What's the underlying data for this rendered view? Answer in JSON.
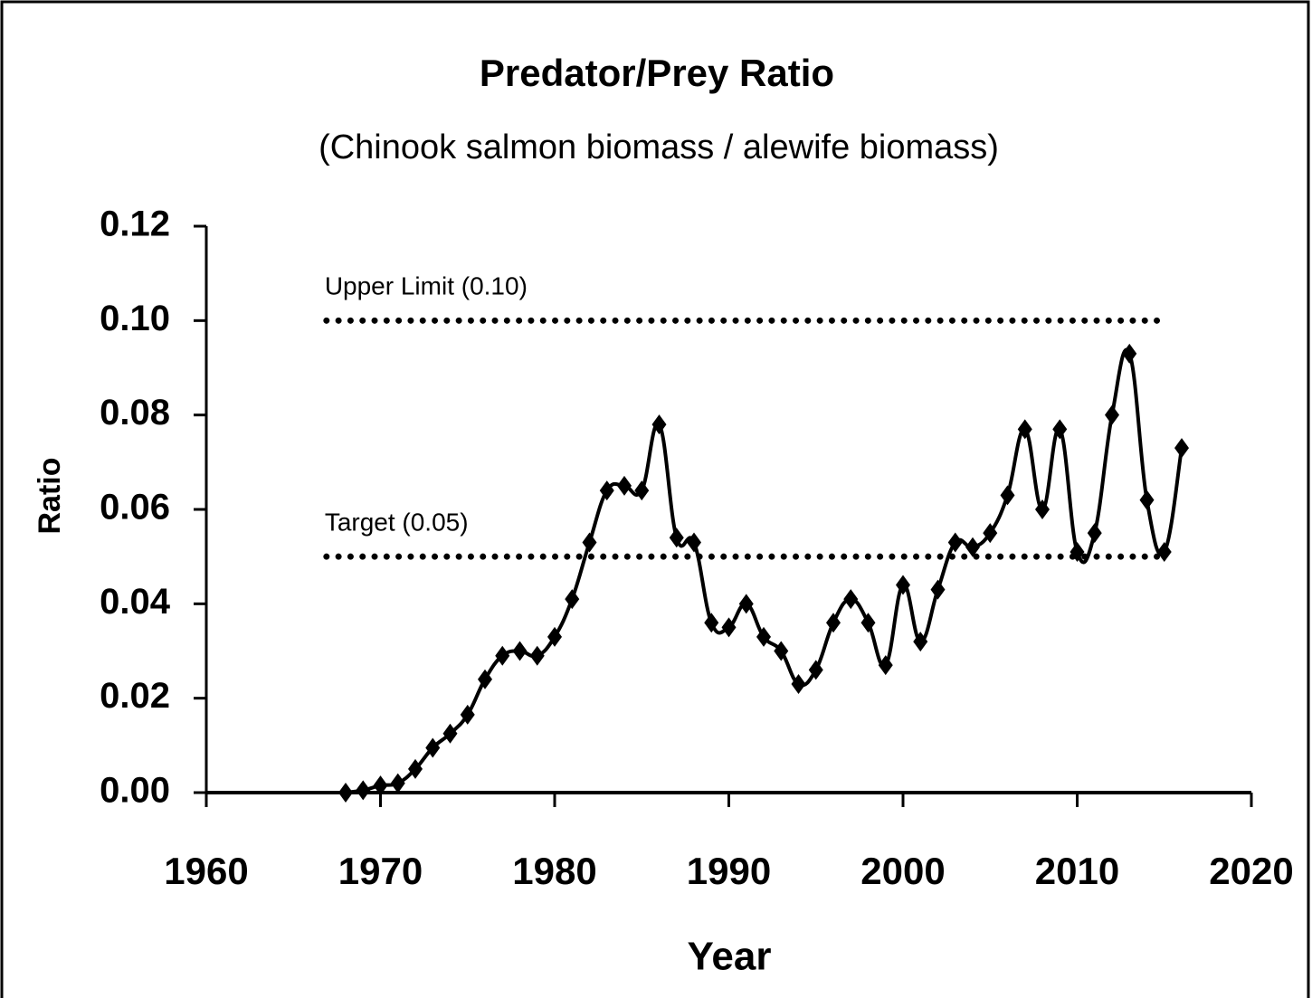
{
  "chart_data": {
    "type": "line",
    "title": "Predator/Prey Ratio",
    "subtitle": "(Chinook salmon biomass / alewife biomass)",
    "x_label": "Year",
    "y_label": "Ratio",
    "x": [
      1968,
      1969,
      1970,
      1971,
      1972,
      1973,
      1974,
      1975,
      1976,
      1977,
      1978,
      1979,
      1980,
      1981,
      1982,
      1983,
      1984,
      1985,
      1986,
      1987,
      1988,
      1989,
      1990,
      1991,
      1992,
      1993,
      1994,
      1995,
      1996,
      1997,
      1998,
      1999,
      2000,
      2001,
      2002,
      2003,
      2004,
      2005,
      2006,
      2007,
      2008,
      2009,
      2010,
      2011,
      2012,
      2013,
      2014,
      2015,
      2016
    ],
    "series": [
      {
        "name": "Ratio",
        "color": "#000000",
        "values": [
          0.0,
          0.0005,
          0.0015,
          0.002,
          0.005,
          0.0095,
          0.0125,
          0.0165,
          0.024,
          0.029,
          0.03,
          0.029,
          0.033,
          0.041,
          0.053,
          0.064,
          0.065,
          0.064,
          0.078,
          0.054,
          0.053,
          0.036,
          0.035,
          0.04,
          0.033,
          0.03,
          0.023,
          0.026,
          0.036,
          0.041,
          0.036,
          0.027,
          0.044,
          0.032,
          0.043,
          0.053,
          0.052,
          0.055,
          0.063,
          0.077,
          0.06,
          0.077,
          0.051,
          0.055,
          0.08,
          0.093,
          0.062,
          0.051,
          0.073
        ]
      }
    ],
    "reference_lines": [
      {
        "label": "Upper Limit (0.10)",
        "value": 0.1
      },
      {
        "label": "Target (0.05)",
        "value": 0.05
      }
    ],
    "xlim": [
      1960,
      2020
    ],
    "xticks": [
      1960,
      1970,
      1980,
      1990,
      2000,
      2010,
      2020
    ],
    "ylim": [
      0,
      0.12
    ],
    "yticks": [
      {
        "value": 0,
        "label": "0.00"
      },
      0.02,
      0.04,
      0.06,
      0.08,
      {
        "value": 0.1,
        "label": "0.10"
      },
      0.12
    ]
  }
}
